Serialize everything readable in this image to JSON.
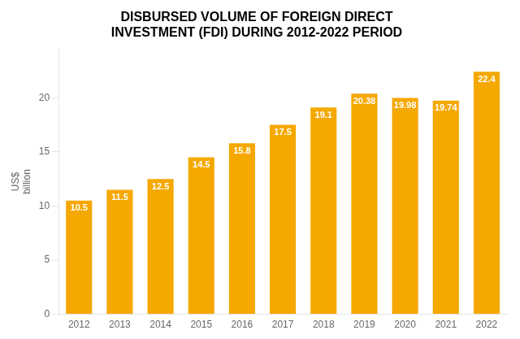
{
  "chart_data": {
    "type": "bar",
    "title": [
      "DISBURSED VOLUME OF FOREIGN DIRECT",
      "INVESTMENT (FDI) DURING 2012-2022 PERIOD"
    ],
    "y_label": [
      "US$",
      "billion"
    ],
    "categories": [
      "2012",
      "2013",
      "2014",
      "2015",
      "2016",
      "2017",
      "2018",
      "2019",
      "2020",
      "2021",
      "2022"
    ],
    "values": [
      10.5,
      11.5,
      12.5,
      14.5,
      15.8,
      17.5,
      19.1,
      20.38,
      19.98,
      19.74,
      22.4
    ],
    "color": "#F5A800",
    "ylim": [
      0,
      24.5
    ],
    "yticks": [
      0,
      5,
      10,
      15,
      20
    ],
    "grid": false,
    "data_labels": true
  }
}
